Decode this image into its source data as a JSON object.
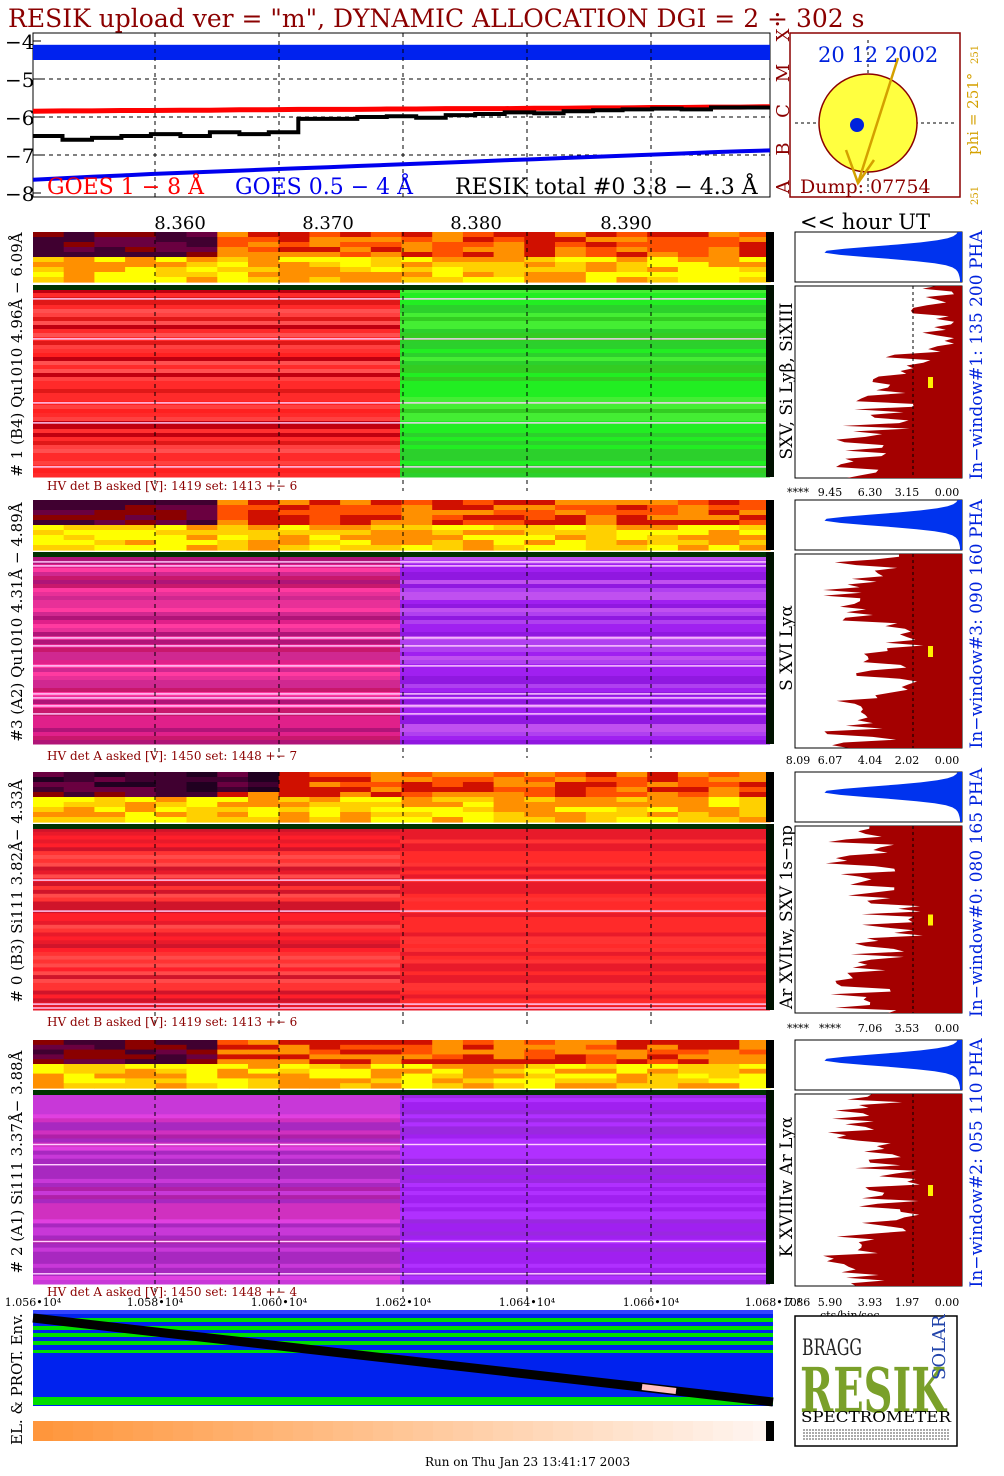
{
  "header": {
    "title": "RESIK upload ver = \"m\", DYNAMIC ALLOCATION  DGI =   2 ÷ 302 s"
  },
  "colors": {
    "title": "#8b0000",
    "goes_long": "#ff0000",
    "goes_short": "#0000ee",
    "resik_total": "#000000",
    "sun_disk": "#ffff40",
    "sun_marker": "#0022dd",
    "angle_label": "#d4a000",
    "histogram_fill": "#a40000",
    "pha_fill": "#0033ee",
    "env_blue": "#0022ee",
    "env_green": "#00dd00",
    "footer_bar": "#ff9933"
  },
  "goes_panel": {
    "y_ticks": [
      "−4",
      "−5",
      "−6",
      "−7",
      "−8"
    ],
    "right_axis_letters": [
      "X",
      "M",
      "C",
      "B",
      "A"
    ],
    "legend_long": "GOES 1 − 8 Å",
    "legend_short": "GOES 0.5 − 4 Å",
    "legend_total": "RESIK total #0  3.8 − 4.3 Å",
    "time_ticks": [
      "8.360",
      "8.370",
      "8.380",
      "8.390"
    ],
    "hour_label": "<< hour UT"
  },
  "sun_panel": {
    "date": "20 12 2002",
    "phi_label": "phi = 251°",
    "phi_small_top": "251",
    "phi_small_bottom": "251",
    "dump_label": "Dump: 07754"
  },
  "channels": [
    {
      "side_label": "# 1 (B4) Qu1010 4.96Å − 6.09Å",
      "line_label": "SXV, Si Lyβ, SiXIII",
      "hv_label": "HV det B asked [V]:  1419 set:  1413 +−    6",
      "window_label": "In−window#1:  135 200 PHA",
      "hist_ticks": [
        "****",
        "9.45",
        "6.30",
        "3.15",
        "0.00"
      ]
    },
    {
      "side_label": "#3 (A2) Qu1010  4.31Å − 4.89Å",
      "line_label": "S XVI Lyα",
      "hv_label": "HV det A asked [V]:  1450 set:  1448 +−    7",
      "window_label": "In−window#3:  090 160 PHA",
      "hist_ticks": [
        "8.09",
        "6.07",
        "4.04",
        "2.02",
        "0.00"
      ]
    },
    {
      "side_label": "# 0 (B3) Si111  3.82Å− 4.33Å",
      "line_label": "Ar XVIIw,  SXV 1s−np",
      "hv_label": "HV det B asked [V]:  1419 set:  1413 +−    6",
      "window_label": "In−window#0:  080 165 PHA",
      "hist_ticks": [
        "****",
        "****",
        "7.06",
        "3.53",
        "0.00"
      ]
    },
    {
      "side_label": "# 2 (A1) Si111  3.37Å− 3.88Å",
      "line_label": "K XVIIIw  Ar Lyα",
      "hv_label": "HV det A asked [V]:  1450 set:  1448 +−    4",
      "window_label": "In−window#2:  055 110 PHA",
      "hist_ticks": [
        "7.86",
        "5.90",
        "3.93",
        "1.97",
        "0.00"
      ]
    }
  ],
  "chart_data": {
    "type": "line",
    "title": "RESIK upload ver = \"m\", DYNAMIC ALLOCATION  DGI =   2 ÷ 302 s",
    "xlabel": "hour UT",
    "ylabel": "",
    "x": [
      8.35,
      8.352,
      8.354,
      8.356,
      8.358,
      8.36,
      8.362,
      8.364,
      8.366,
      8.368,
      8.37,
      8.372,
      8.374,
      8.376,
      8.378,
      8.38,
      8.382,
      8.384,
      8.386,
      8.388,
      8.39,
      8.392,
      8.394,
      8.396,
      8.398,
      8.4
    ],
    "xlim": [
      8.35,
      8.4
    ],
    "ylim": [
      -8,
      -4
    ],
    "series": [
      {
        "name": "GOES 1 − 8 Å",
        "values": [
          -5.85,
          -5.84,
          -5.84,
          -5.83,
          -5.83,
          -5.82,
          -5.82,
          -5.81,
          -5.81,
          -5.8,
          -5.8,
          -5.8,
          -5.79,
          -5.79,
          -5.78,
          -5.78,
          -5.78,
          -5.77,
          -5.77,
          -5.76,
          -5.76,
          -5.75,
          -5.75,
          -5.74,
          -5.74,
          -5.73
        ]
      },
      {
        "name": "GOES 0.5 − 4 Å",
        "values": [
          -7.65,
          -7.61,
          -7.57,
          -7.54,
          -7.5,
          -7.47,
          -7.44,
          -7.41,
          -7.38,
          -7.35,
          -7.32,
          -7.29,
          -7.26,
          -7.23,
          -7.2,
          -7.17,
          -7.14,
          -7.11,
          -7.08,
          -7.05,
          -7.02,
          -6.99,
          -6.96,
          -6.93,
          -6.9,
          -6.88
        ]
      },
      {
        "name": "RESIK total #0  3.8 − 4.3 Å",
        "values": [
          -6.5,
          -6.6,
          -6.55,
          -6.5,
          -6.45,
          -6.5,
          -6.4,
          -6.45,
          -6.4,
          -6.05,
          -6.05,
          -6.0,
          -5.98,
          -6.02,
          -5.95,
          -5.92,
          -5.88,
          -5.9,
          -5.85,
          -5.82,
          -5.8,
          -5.78,
          -5.8,
          -5.75,
          -5.75,
          -5.72
        ]
      }
    ],
    "goes_flare_levels": [
      "X",
      "M",
      "C",
      "B",
      "A"
    ],
    "band_blue_range": [
      -4.1,
      -4.5
    ],
    "energy_axis": {
      "ticks": [
        "1.056•10⁴",
        "1.058•10⁴",
        "1.060•10⁴",
        "1.062•10⁴",
        "1.064•10⁴",
        "1.066•10⁴",
        "1.068•10⁴"
      ],
      "values": [
        10560,
        10580,
        10600,
        10620,
        10640,
        10660,
        10680
      ]
    },
    "hist_xlabel": "cts/bin/sec",
    "grid": true
  },
  "env_panel": {
    "label": "EL. & PROT. Env."
  },
  "logo": {
    "line1": "BRAGG",
    "main": "RESIK",
    "side": "SOLAR",
    "bottom": "SPECTROMETER"
  },
  "footer": {
    "run_label": "Run on Thu Jan 23 13:41:17 2003"
  }
}
